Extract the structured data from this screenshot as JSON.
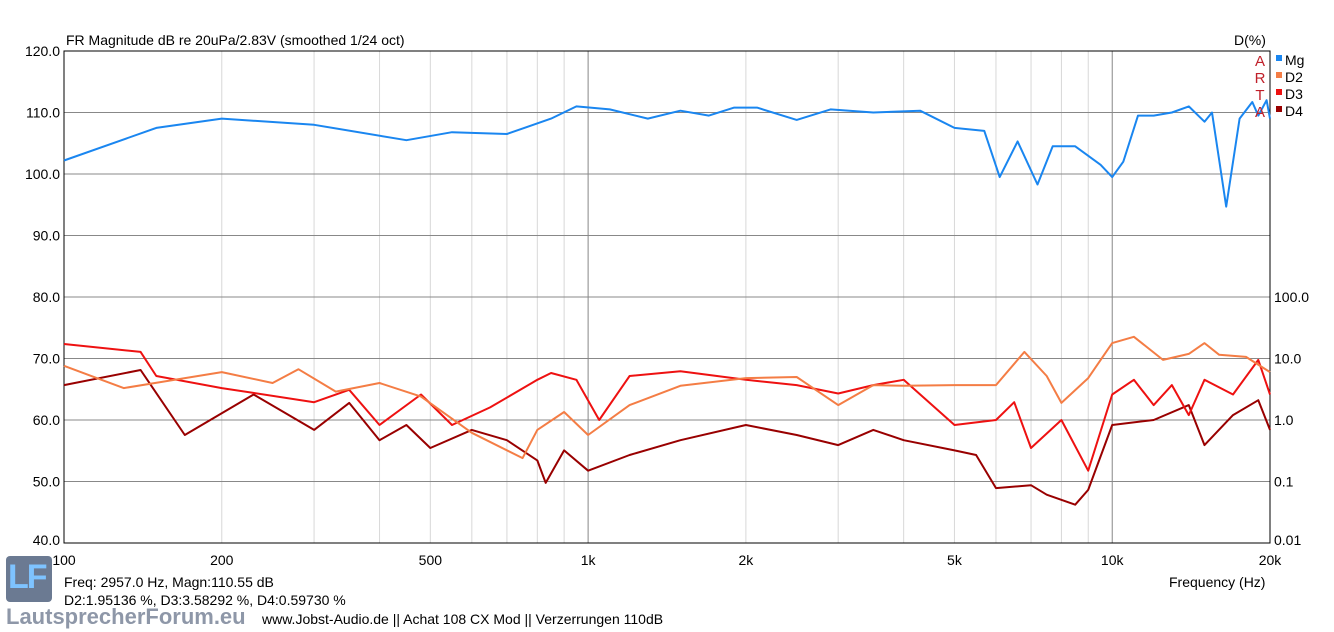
{
  "chart_data": {
    "type": "line",
    "title": "FR Magnitude dB re 20uPa/2.83V (smoothed 1/24 oct)",
    "right_axis_title": "D(%)",
    "xlabel": "Frequency (Hz)",
    "x_scale": "log",
    "xlim": [
      100,
      20000
    ],
    "x_ticks": [
      {
        "v": 100,
        "label": "100"
      },
      {
        "v": 200,
        "label": "200"
      },
      {
        "v": 500,
        "label": "500"
      },
      {
        "v": 1000,
        "label": "1k"
      },
      {
        "v": 2000,
        "label": "2k"
      },
      {
        "v": 5000,
        "label": "5k"
      },
      {
        "v": 10000,
        "label": "10k"
      },
      {
        "v": 20000,
        "label": "20k"
      }
    ],
    "ylim": [
      40,
      120
    ],
    "y_ticks": [
      "40.0",
      "50.0",
      "60.0",
      "70.0",
      "80.0",
      "90.0",
      "100.0",
      "110.0",
      "120.0"
    ],
    "y2_scale": "log",
    "y2lim": [
      0.01,
      100
    ],
    "y2_ticks": [
      "0.01",
      "0.1",
      "1.0",
      "10.0",
      "100.0"
    ],
    "legend_position": "top-right",
    "legend_markers": [
      "A",
      "R",
      "T",
      "A"
    ],
    "series": [
      {
        "name": "Mg",
        "axis": "left",
        "color": "#1a86f0",
        "points": [
          [
            100,
            102.2
          ],
          [
            150,
            107.5
          ],
          [
            200,
            109
          ],
          [
            300,
            108
          ],
          [
            450,
            105.5
          ],
          [
            550,
            106.8
          ],
          [
            700,
            106.5
          ],
          [
            850,
            109
          ],
          [
            950,
            111
          ],
          [
            1100,
            110.5
          ],
          [
            1300,
            109
          ],
          [
            1500,
            110.3
          ],
          [
            1700,
            109.5
          ],
          [
            1900,
            110.8
          ],
          [
            2100,
            110.8
          ],
          [
            2500,
            108.8
          ],
          [
            2900,
            110.5
          ],
          [
            3500,
            110
          ],
          [
            4300,
            110.3
          ],
          [
            5000,
            107.5
          ],
          [
            5700,
            107
          ],
          [
            6100,
            99.5
          ],
          [
            6600,
            105.3
          ],
          [
            7200,
            98.3
          ],
          [
            7700,
            104.5
          ],
          [
            8500,
            104.5
          ],
          [
            9500,
            101.5
          ],
          [
            10000,
            99.5
          ],
          [
            10500,
            102
          ],
          [
            11200,
            109.5
          ],
          [
            12000,
            109.5
          ],
          [
            13000,
            110
          ],
          [
            14000,
            111
          ],
          [
            15000,
            108.5
          ],
          [
            15500,
            110
          ],
          [
            16500,
            94.7
          ],
          [
            17500,
            109
          ],
          [
            18500,
            111.7
          ],
          [
            19000,
            109.5
          ],
          [
            19700,
            112
          ],
          [
            20000,
            109
          ]
        ]
      },
      {
        "name": "D2",
        "axis": "right",
        "color": "#f47d45",
        "points": [
          [
            100,
            7.6
          ],
          [
            130,
            3.3
          ],
          [
            200,
            6.0
          ],
          [
            250,
            4.0
          ],
          [
            280,
            6.7
          ],
          [
            330,
            2.9
          ],
          [
            400,
            4.0
          ],
          [
            480,
            2.4
          ],
          [
            600,
            0.62
          ],
          [
            750,
            0.24
          ],
          [
            800,
            0.69
          ],
          [
            900,
            1.35
          ],
          [
            1000,
            0.57
          ],
          [
            1200,
            1.75
          ],
          [
            1500,
            3.6
          ],
          [
            2000,
            4.8
          ],
          [
            2500,
            5.0
          ],
          [
            3000,
            1.75
          ],
          [
            3500,
            3.7
          ],
          [
            4000,
            3.6
          ],
          [
            5000,
            3.7
          ],
          [
            6000,
            3.7
          ],
          [
            6800,
            12.8
          ],
          [
            7500,
            5.2
          ],
          [
            8000,
            1.9
          ],
          [
            9000,
            4.8
          ],
          [
            10000,
            17.8
          ],
          [
            11000,
            22.5
          ],
          [
            12500,
            9.5
          ],
          [
            14000,
            11.9
          ],
          [
            15000,
            17.8
          ],
          [
            16000,
            11.5
          ],
          [
            18000,
            10.6
          ],
          [
            20000,
            6.0
          ]
        ]
      },
      {
        "name": "D3",
        "axis": "right",
        "color": "#ee1111",
        "points": [
          [
            100,
            17.2
          ],
          [
            140,
            12.8
          ],
          [
            150,
            5.2
          ],
          [
            200,
            3.3
          ],
          [
            300,
            1.95
          ],
          [
            350,
            3.1
          ],
          [
            400,
            0.83
          ],
          [
            480,
            2.6
          ],
          [
            550,
            0.83
          ],
          [
            650,
            1.6
          ],
          [
            800,
            4.5
          ],
          [
            850,
            5.8
          ],
          [
            950,
            4.5
          ],
          [
            1050,
            1.0
          ],
          [
            1200,
            5.2
          ],
          [
            1500,
            6.2
          ],
          [
            2000,
            4.5
          ],
          [
            2500,
            3.7
          ],
          [
            3000,
            2.7
          ],
          [
            3500,
            3.7
          ],
          [
            4000,
            4.5
          ],
          [
            5000,
            0.83
          ],
          [
            6000,
            1.0
          ],
          [
            6500,
            1.95
          ],
          [
            7000,
            0.35
          ],
          [
            8000,
            1.0
          ],
          [
            9000,
            0.15
          ],
          [
            10000,
            2.6
          ],
          [
            11000,
            4.5
          ],
          [
            12000,
            1.75
          ],
          [
            13000,
            3.7
          ],
          [
            14000,
            1.2
          ],
          [
            15000,
            4.5
          ],
          [
            17000,
            2.6
          ],
          [
            19000,
            9.5
          ],
          [
            20000,
            2.6
          ]
        ]
      },
      {
        "name": "D4",
        "axis": "right",
        "color": "#990000",
        "points": [
          [
            100,
            3.7
          ],
          [
            140,
            6.5
          ],
          [
            170,
            0.57
          ],
          [
            230,
            2.6
          ],
          [
            300,
            0.69
          ],
          [
            350,
            1.9
          ],
          [
            400,
            0.47
          ],
          [
            450,
            0.83
          ],
          [
            500,
            0.35
          ],
          [
            600,
            0.69
          ],
          [
            700,
            0.47
          ],
          [
            800,
            0.22
          ],
          [
            830,
            0.095
          ],
          [
            900,
            0.32
          ],
          [
            1000,
            0.15
          ],
          [
            1200,
            0.27
          ],
          [
            1500,
            0.47
          ],
          [
            2000,
            0.83
          ],
          [
            2500,
            0.57
          ],
          [
            3000,
            0.39
          ],
          [
            3500,
            0.69
          ],
          [
            4000,
            0.47
          ],
          [
            5000,
            0.32
          ],
          [
            5500,
            0.27
          ],
          [
            6000,
            0.078
          ],
          [
            7000,
            0.087
          ],
          [
            7500,
            0.061
          ],
          [
            8500,
            0.042
          ],
          [
            9000,
            0.073
          ],
          [
            10000,
            0.83
          ],
          [
            12000,
            1.0
          ],
          [
            14000,
            1.75
          ],
          [
            15000,
            0.39
          ],
          [
            17000,
            1.2
          ],
          [
            19000,
            2.1
          ],
          [
            20000,
            0.69
          ]
        ]
      }
    ]
  },
  "readout": {
    "line1": "Freq: 2957.0 Hz, Magn:110.55 dB",
    "line2": "D2:1.95136 %, D3:3.58292 %, D4:0.59730 %"
  },
  "footer": "www.Jobst-Audio.de  ||  Achat  108 CX Mod  ||  Verzerrungen 110dB",
  "watermark": {
    "logo": "LF",
    "site": "LautsprecherForum.eu"
  }
}
